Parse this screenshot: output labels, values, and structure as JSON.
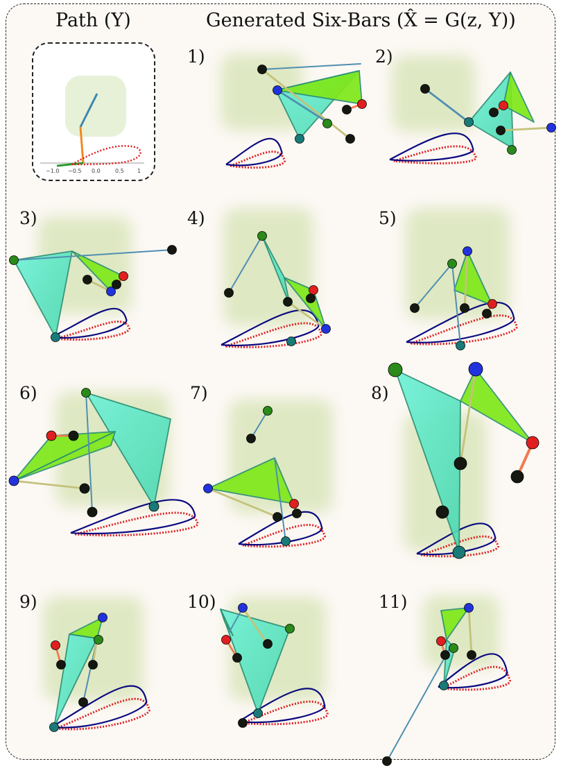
{
  "headings": {
    "path": "Path (Y)",
    "generated": "Generated Six-Bars (X̂ = G(z, Y))"
  },
  "inset": {
    "ticks": [
      "−1.0",
      "−0.5",
      "0.0",
      "0.5",
      "1"
    ]
  },
  "panel_labels": [
    "1)",
    "2)",
    "3)",
    "4)",
    "5)",
    "6)",
    "7)",
    "8)",
    "9)",
    "10)",
    "11)"
  ],
  "colors": {
    "tri_green": "#7fe81a",
    "tri_cyan": "#6ff0cf",
    "link_blue": "#4f8fb0",
    "link_olive": "#c4c27a",
    "link_orange": "#f07a50",
    "joint_black": "#151810",
    "joint_green": "#2a8a1a",
    "joint_blue": "#2233dd",
    "joint_red": "#e02020",
    "joint_teal": "#1a7a78",
    "path_red": "#dd2222",
    "path_navy": "#0a0a80",
    "glow": "#c7dc9c"
  }
}
